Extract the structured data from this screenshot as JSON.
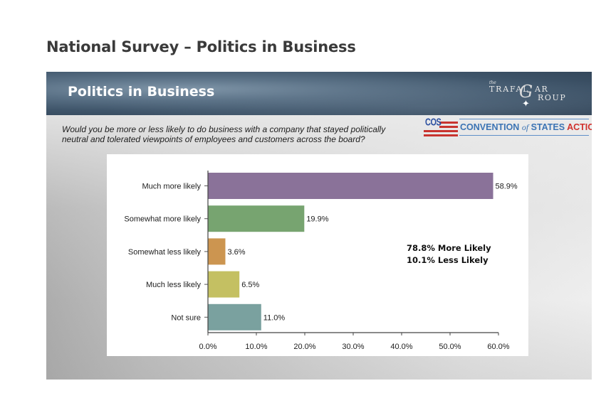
{
  "page": {
    "title": "National Survey – Politics in Business"
  },
  "slide": {
    "title": "Politics in Business",
    "question_line1": "Would you be more or less likely to do business with a company that stayed politically",
    "question_line2": "neutral and tolerated viewpoints of employees and customers across the board?",
    "logo_trafalgar": {
      "the": "the",
      "word1": "TRAFAL",
      "g": "G",
      "word2": "AR",
      "word3": "ROUP"
    },
    "logo_cos": {
      "abbr": "COS",
      "name_part1": "CONVENTION ",
      "name_of": "of",
      "name_part2": " STATES ",
      "name_action": "ACTION"
    },
    "annotation_line1": "78.8% More Likely",
    "annotation_line2": "10.1% Less Likely"
  },
  "colors": {
    "header_bg": "#3f556a",
    "cos_blue": "#3c74b4",
    "cos_red": "#d0312d"
  },
  "chart_data": {
    "type": "bar",
    "orientation": "horizontal",
    "title": "",
    "xlabel": "",
    "ylabel": "",
    "categories": [
      "Much more likely",
      "Somewhat more likely",
      "Somewhat less likely",
      "Much less likely",
      "Not sure"
    ],
    "values": [
      58.9,
      19.9,
      3.6,
      6.5,
      11.0
    ],
    "value_labels": [
      "58.9%",
      "19.9%",
      "3.6%",
      "6.5%",
      "11.0%"
    ],
    "colors": [
      "#8a7299",
      "#77a470",
      "#cc9550",
      "#c4c062",
      "#7aa19f"
    ],
    "xlim": [
      0,
      60
    ],
    "xticks": [
      0,
      10,
      20,
      30,
      40,
      50,
      60
    ],
    "xtick_labels": [
      "0.0%",
      "10.0%",
      "20.0%",
      "30.0%",
      "40.0%",
      "50.0%",
      "60.0%"
    ],
    "grid": false,
    "legend": "none"
  }
}
